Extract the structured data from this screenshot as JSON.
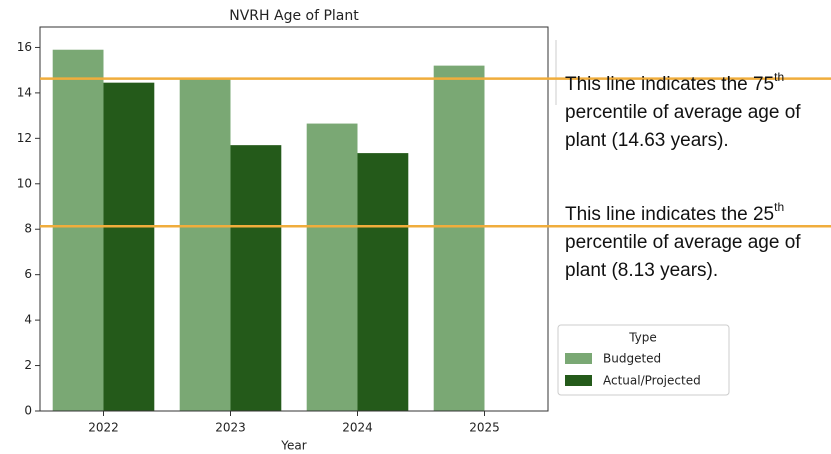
{
  "chart_data": {
    "type": "bar",
    "title": "NVRH Age of Plant",
    "xlabel": "Year",
    "categories": [
      "2022",
      "2023",
      "2024",
      "2025"
    ],
    "series": [
      {
        "name": "Budgeted",
        "color": "#7aa874",
        "values": [
          15.9,
          14.6,
          12.65,
          15.2
        ]
      },
      {
        "name": "Actual/Projected",
        "color": "#245a1a",
        "values": [
          14.45,
          11.7,
          11.35,
          null
        ]
      }
    ],
    "ylim": [
      0,
      16.9
    ],
    "yticks": [
      0,
      2,
      4,
      6,
      8,
      10,
      12,
      14,
      16
    ],
    "legend_title": "Type",
    "legend_position": "right",
    "hlines": [
      {
        "value": 14.63,
        "color": "#f0ad3c"
      },
      {
        "value": 8.13,
        "color": "#f0ad3c"
      }
    ],
    "annotations": [
      {
        "lines": [
          "This line indicates the 75",
          "percentile of average age of",
          "plant (14.63 years)."
        ],
        "sup": "th"
      },
      {
        "lines": [
          "This line indicates the 25",
          "percentile of average age of",
          "plant (8.13 years)."
        ],
        "sup": "th"
      }
    ]
  }
}
